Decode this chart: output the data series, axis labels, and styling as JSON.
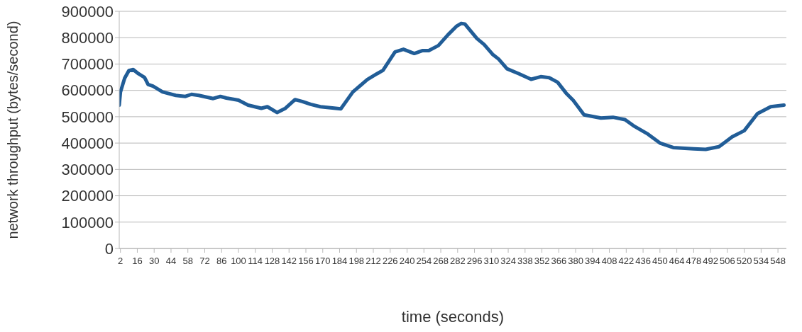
{
  "chart_data": {
    "type": "line",
    "xlabel": "time (seconds)",
    "ylabel": "network throughput (bytes/second)",
    "xlim": [
      1,
      555
    ],
    "xticks": [
      2,
      16,
      30,
      44,
      58,
      72,
      86,
      100,
      114,
      128,
      142,
      156,
      170,
      184,
      198,
      212,
      226,
      240,
      254,
      268,
      282,
      296,
      310,
      324,
      338,
      352,
      366,
      380,
      394,
      408,
      422,
      436,
      450,
      464,
      478,
      492,
      506,
      520,
      534,
      548
    ],
    "ylim": [
      0,
      900000
    ],
    "yticks": [
      0,
      100000,
      200000,
      300000,
      400000,
      500000,
      600000,
      700000,
      800000,
      900000
    ],
    "grid": "y",
    "legend": false,
    "marker": "none",
    "line_style": "solid",
    "series": [
      {
        "color": "#215d97",
        "x": [
          1,
          2,
          5.5,
          9,
          12.6,
          17,
          22,
          25,
          29,
          37,
          48,
          56,
          61,
          67,
          79,
          85,
          90,
          100,
          108,
          119,
          124,
          132,
          139,
          147,
          153,
          160,
          168,
          185,
          195,
          207,
          215,
          220,
          230,
          237,
          246,
          253,
          258,
          266,
          274,
          281,
          285,
          288,
          298,
          304,
          311,
          316,
          323,
          333,
          343,
          351,
          358,
          365,
          372,
          378,
          387,
          401,
          411,
          421,
          428,
          440,
          450,
          461,
          478,
          488,
          499,
          510,
          520,
          531,
          542,
          553
        ],
        "values": [
          544000,
          594000,
          646000,
          675000,
          679000,
          663000,
          649000,
          622000,
          616000,
          594000,
          581000,
          577000,
          585000,
          581000,
          569000,
          577000,
          571000,
          563000,
          544000,
          532000,
          538000,
          516000,
          532000,
          565000,
          558000,
          547000,
          538000,
          530000,
          594000,
          641000,
          663000,
          676000,
          746000,
          756000,
          740000,
          751000,
          751000,
          770000,
          811000,
          843000,
          854000,
          852000,
          797000,
          774000,
          737000,
          719000,
          682000,
          663000,
          642000,
          652000,
          648000,
          631000,
          590000,
          562000,
          507000,
          495000,
          498000,
          489000,
          466000,
          434000,
          400000,
          383000,
          378000,
          376000,
          386000,
          424000,
          447000,
          512000,
          538000,
          544000
        ]
      }
    ]
  }
}
